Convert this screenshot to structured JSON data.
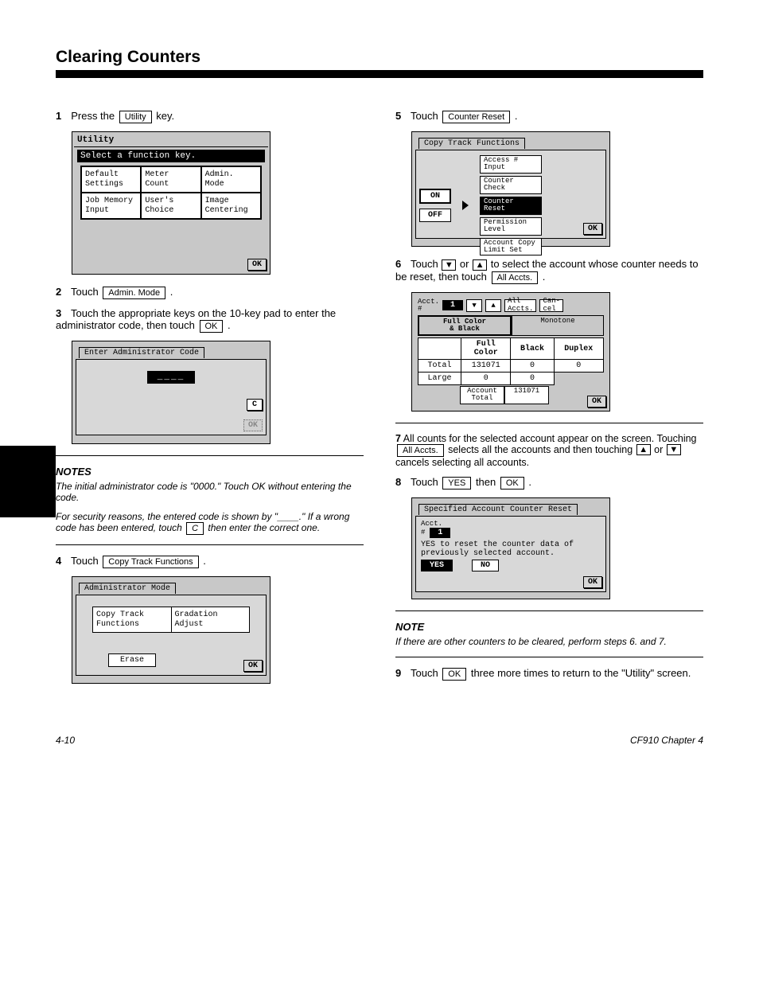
{
  "header": "Clearing Counters",
  "sidebar_black": true,
  "left": {
    "s1": {
      "n": "1",
      "t_a": "Press the ",
      "key": "Utility",
      "t_b": " key."
    },
    "shot_utility": {
      "title": "Utility",
      "prompt": "Select a function key.",
      "cells": [
        "Default\nSettings",
        "Meter\nCount",
        "Admin.\nMode",
        "Job Memory\nInput",
        "User's\nChoice",
        "Image\nCentering"
      ],
      "ok": "OK"
    },
    "s2": {
      "n": "2",
      "t_a": "Touch ",
      "key": "Admin. Mode",
      "t_b": "."
    },
    "s3": {
      "n": "3",
      "t": "Touch the appropriate keys on the 10-key pad to enter the administrator code, then touch ",
      "key": "OK",
      "t_b": "."
    },
    "shot_code": {
      "title": "Enter Administrator Code",
      "value": "____",
      "c": "C",
      "dim_ok": "OK"
    },
    "note1_head": "NOTES",
    "note1_body": "The initial administrator code is \"0000.\" Touch OK without entering the code.",
    "note2_body": "For security reasons, the entered code is shown by \"____.\" If a wrong code has been entered, touch   C   then enter the correct one.",
    "s4": {
      "n": "4",
      "t": "Touch ",
      "key": "Copy Track Functions",
      "t_b": "."
    },
    "shot_admin": {
      "title": "Administrator Mode",
      "cells": [
        "Copy Track\nFunctions",
        "Gradation\nAdjust"
      ],
      "erase": "Erase",
      "ok": "OK"
    }
  },
  "right": {
    "s5": {
      "n": "5",
      "t": "Touch ",
      "key": "Counter Reset",
      "t_b": "."
    },
    "shot_ctf": {
      "title": "Copy Track Functions",
      "on": "ON",
      "off": "OFF",
      "items": [
        "Access #\nInput",
        "Counter\nCheck",
        "Counter\nReset",
        "Permission\nLevel",
        "Account Copy\nLimit Set"
      ],
      "sel_index": 2,
      "ok": "OK"
    },
    "s6": {
      "n": "6",
      "t_a": "Touch ",
      "sym_dn": "▼",
      "t_b": " or ",
      "sym_up": "▲",
      "t_c": " to select the account whose counter needs to be reset, then touch ",
      "key": "All Accts.",
      "t_d": "."
    },
    "shot_cc": {
      "acct_label": "Acct.\n#",
      "acct_num": "1",
      "all": "All\nAccts.",
      "cancel": "Can-\ncel",
      "tab_a": "Full Color\n& Black",
      "tab_b": "Monotone",
      "cols": [
        "",
        "Full\nColor",
        "Black",
        "Duplex"
      ],
      "rows": [
        [
          "Total",
          "131071",
          "0",
          "0"
        ],
        [
          "Large",
          "0",
          "0",
          ""
        ]
      ],
      "acct_total_label": "Account\nTotal",
      "acct_total_value": "131071",
      "ok": "OK"
    },
    "s7": {
      "n": "7",
      "t": "All counts for the selected account appear on the screen. Touching ",
      "key": "All Accts.",
      "t_b": " selects all the accounts and then touching ",
      "sym_up": "▲",
      "t_c": " or ",
      "sym_dn": "▼",
      "t_d": " cancels selecting all accounts."
    },
    "s8": {
      "n": "8",
      "t": "Touch ",
      "key": "YES",
      "t_b": " then ",
      "key2": "OK",
      "t_c": "."
    },
    "shot_reset": {
      "title": "Specified Account Counter Reset",
      "acct_label": "Acct.\n#",
      "acct_num": "1",
      "msg": "YES to reset the counter data of previously selected account.",
      "yes": "YES",
      "no": "NO",
      "ok": "OK"
    },
    "note3_head": "NOTE",
    "note3_body": "If there are other counters to be cleared, perform steps 6. and 7.",
    "s9": {
      "n": "9",
      "t": "Touch ",
      "key": "OK",
      "t_b": " three more times to return to the \"Utility\" screen."
    }
  },
  "footer": {
    "left": "4-10",
    "right": "CF910 Chapter 4"
  }
}
